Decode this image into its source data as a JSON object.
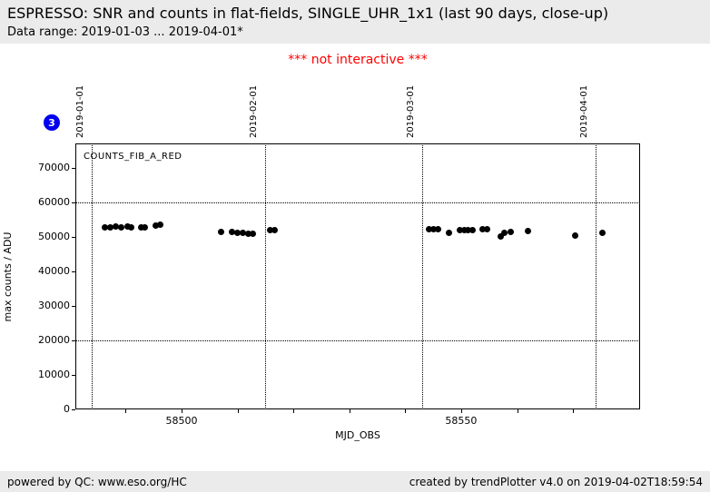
{
  "header": {
    "title": "ESPRESSO: SNR and counts in flat-fields, SINGLE_UHR_1x1 (last 90 days, close-up)",
    "subtitle": "Data range: 2019-01-03 ... 2019-04-01*"
  },
  "notice": {
    "text": "*** not interactive ***",
    "color": "#ff0000"
  },
  "badge": {
    "label": "3",
    "color": "#0000ee"
  },
  "footer": {
    "left": "powered by QC: www.eso.org/HC",
    "right": "created by trendPlotter v4.0 on 2019-04-02T18:59:54"
  },
  "chart_data": {
    "type": "scatter",
    "series_label": "COUNTS_FIB_A_RED",
    "xlabel": "MJD_OBS",
    "ylabel": "max counts / ADU",
    "xlim": [
      58481,
      58582
    ],
    "ylim": [
      0,
      77000
    ],
    "x_major_ticks": [
      58500,
      58550
    ],
    "x_minor_ticks": [
      58490,
      58500,
      58510,
      58520,
      58530,
      58540,
      58550,
      58560,
      58570
    ],
    "y_ticks": [
      0,
      10000,
      20000,
      30000,
      40000,
      50000,
      60000,
      70000
    ],
    "h_dotted_lines": [
      60000,
      20000
    ],
    "date_gridlines": [
      {
        "label": "2019-01-01",
        "mjd": 58484
      },
      {
        "label": "2019-02-01",
        "mjd": 58515
      },
      {
        "label": "2019-03-01",
        "mjd": 58543
      },
      {
        "label": "2019-04-01",
        "mjd": 58574
      }
    ],
    "grid": "dotted date gridlines and two dotted threshold lines",
    "legend_position": "none",
    "marker_color": "#000000",
    "points": [
      [
        58486.3,
        52600
      ],
      [
        58487.3,
        52600
      ],
      [
        58488.3,
        52900
      ],
      [
        58489.2,
        52600
      ],
      [
        58490.3,
        52900
      ],
      [
        58491.0,
        52600
      ],
      [
        58492.7,
        52600
      ],
      [
        58493.5,
        52600
      ],
      [
        58495.4,
        53200
      ],
      [
        58496.2,
        53400
      ],
      [
        58507.0,
        51400
      ],
      [
        58509.0,
        51400
      ],
      [
        58510.0,
        51200
      ],
      [
        58510.9,
        51050
      ],
      [
        58511.9,
        50900
      ],
      [
        58512.7,
        50870
      ],
      [
        58515.8,
        51900
      ],
      [
        58516.6,
        51900
      ],
      [
        58544.2,
        52200
      ],
      [
        58545.0,
        52200
      ],
      [
        58545.8,
        52200
      ],
      [
        58547.8,
        51050
      ],
      [
        58549.7,
        51900
      ],
      [
        58550.5,
        51900
      ],
      [
        58551.3,
        51850
      ],
      [
        58552.0,
        51850
      ],
      [
        58553.8,
        52200
      ],
      [
        58554.6,
        52200
      ],
      [
        58557.0,
        50000
      ],
      [
        58557.7,
        51050
      ],
      [
        58558.9,
        51300
      ],
      [
        58561.9,
        51600
      ],
      [
        58570.4,
        50200
      ],
      [
        58575.3,
        51050
      ]
    ]
  }
}
